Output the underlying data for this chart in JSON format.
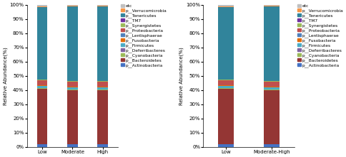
{
  "chart1_categories": [
    "Low",
    "Moderate",
    "High"
  ],
  "chart2_categories": [
    "Low",
    "Moderate-High"
  ],
  "stack_order": [
    "p__Actinobacteria",
    "p__Bacteroidetes",
    "p__Cyanobacteria",
    "p__Deferribacteres",
    "p__Firmicutes",
    "p__Fusobacteria",
    "p__Lentisphaerae",
    "p__Proteobacteria",
    "p__Synergistetes",
    "p__TM7",
    "p__Tenericutes",
    "p__Verrucomicrobia",
    "etc"
  ],
  "legend_order": [
    "etc",
    "p__Verrucomicrobia",
    "p__Tenericutes",
    "p__TM7",
    "p__Synergistetes",
    "p__Proteobacteria",
    "p__Lentisphaerae",
    "p__Fusobacteria",
    "p__Firmicutes",
    "p__Deferribacteres",
    "p__Cyanobacteria",
    "p__Bacteroidetes",
    "p__Actinobacteria"
  ],
  "chart1_data": {
    "p__Actinobacteria": [
      2.0,
      2.0,
      2.0
    ],
    "p__Bacteroidetes": [
      39.0,
      38.0,
      38.0
    ],
    "p__Cyanobacteria": [
      0.2,
      0.2,
      0.2
    ],
    "p__Deferribacteres": [
      0.3,
      0.3,
      0.3
    ],
    "p__Firmicutes": [
      1.5,
      1.5,
      1.5
    ],
    "p__Fusobacteria": [
      0.2,
      0.2,
      0.2
    ],
    "p__Lentisphaerae": [
      0.3,
      0.3,
      0.3
    ],
    "p__Proteobacteria": [
      3.5,
      3.5,
      3.5
    ],
    "p__Synergistetes": [
      0.2,
      0.2,
      0.2
    ],
    "p__TM7": [
      0.3,
      0.3,
      0.3
    ],
    "p__Tenericutes": [
      51.0,
      52.5,
      52.5
    ],
    "p__Verrucomicrobia": [
      0.5,
      0.5,
      0.5
    ],
    "etc": [
      1.0,
      0.5,
      0.8
    ]
  },
  "chart2_data": {
    "p__Actinobacteria": [
      2.0,
      2.0
    ],
    "p__Bacteroidetes": [
      39.0,
      38.0
    ],
    "p__Cyanobacteria": [
      0.2,
      0.2
    ],
    "p__Deferribacteres": [
      0.3,
      0.3
    ],
    "p__Firmicutes": [
      1.5,
      1.5
    ],
    "p__Fusobacteria": [
      0.2,
      0.2
    ],
    "p__Lentisphaerae": [
      0.3,
      0.3
    ],
    "p__Proteobacteria": [
      3.5,
      3.5
    ],
    "p__Synergistetes": [
      0.2,
      0.2
    ],
    "p__TM7": [
      0.3,
      0.3
    ],
    "p__Tenericutes": [
      51.0,
      52.5
    ],
    "p__Verrucomicrobia": [
      0.5,
      0.5
    ],
    "etc": [
      1.0,
      0.5
    ]
  },
  "colors": {
    "p__Actinobacteria": "#4472C4",
    "p__Bacteroidetes": "#943634",
    "p__Cyanobacteria": "#9BBB59",
    "p__Deferribacteres": "#8064A2",
    "p__Firmicutes": "#4BACC6",
    "p__Fusobacteria": "#E46C0A",
    "p__Lentisphaerae": "#4F81BD",
    "p__Proteobacteria": "#C0504D",
    "p__Synergistetes": "#9BBB59",
    "p__TM7": "#7030A0",
    "p__Tenericutes": "#31849B",
    "p__Verrucomicrobia": "#F79646",
    "etc": "#C0C0C0"
  },
  "ylabel": "Relative Abundance(%)",
  "bar_width": 0.35,
  "figsize": [
    4.85,
    2.21
  ],
  "dpi": 100
}
